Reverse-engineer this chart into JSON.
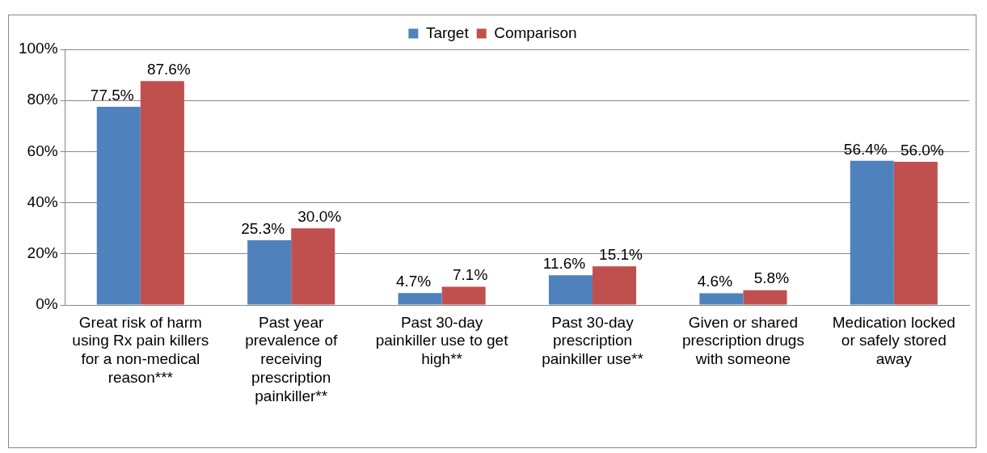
{
  "chart_data": {
    "type": "bar",
    "categories": [
      "Great risk of harm using Rx pain killers for a non-medical reason***",
      "Past year prevalence of receiving prescription painkiller**",
      "Past 30-day painkiller use to get high**",
      "Past 30-day prescription painkiller use**",
      "Given or shared prescription drugs with someone",
      "Medication locked or safely stored away"
    ],
    "series": [
      {
        "name": "Target",
        "color": "#4f81bd",
        "values": [
          77.5,
          25.3,
          4.7,
          11.6,
          4.6,
          56.4
        ],
        "value_labels": [
          "77.5%",
          "25.3%",
          "4.7%",
          "11.6%",
          "4.6%",
          "56.4%"
        ]
      },
      {
        "name": "Comparison",
        "color": "#c0504d",
        "values": [
          87.6,
          30.0,
          7.1,
          15.1,
          5.8,
          56.0
        ],
        "value_labels": [
          "87.6%",
          "30.0%",
          "7.1%",
          "15.1%",
          "5.8%",
          "56.0%"
        ]
      }
    ],
    "ylim": [
      0,
      100
    ],
    "yticks": [
      {
        "value": 0,
        "label": "0%"
      },
      {
        "value": 20,
        "label": "20%"
      },
      {
        "value": 40,
        "label": "40%"
      },
      {
        "value": 60,
        "label": "60%"
      },
      {
        "value": 80,
        "label": "80%"
      },
      {
        "value": 100,
        "label": "100%"
      }
    ],
    "grid": "y",
    "legend": "top"
  }
}
